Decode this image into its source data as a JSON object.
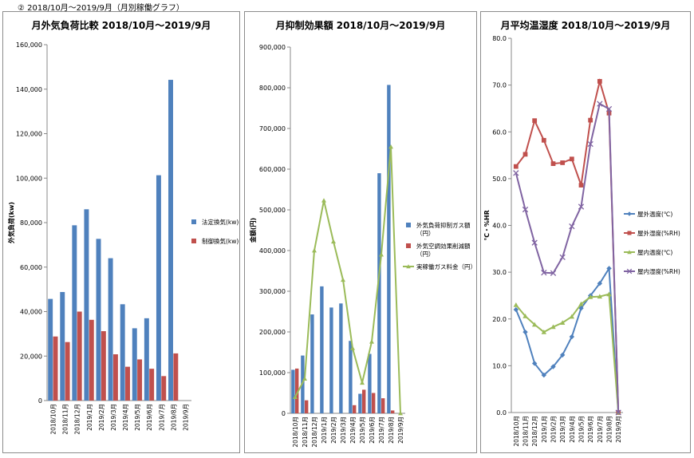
{
  "heading": "② 2018/10月～2019/9月（月別稼働グラフ）",
  "chart_data": [
    {
      "type": "bar",
      "title": "月外気負荷比較 2018/10月～2019/9月",
      "ylabel": "外気負荷(kw)",
      "ylim": [
        0,
        160000
      ],
      "yticks": [
        0,
        20000,
        40000,
        60000,
        80000,
        100000,
        120000,
        140000,
        160000
      ],
      "ytick_labels": [
        "0",
        "20,000",
        "40,000",
        "60,000",
        "80,000",
        "100,000",
        "120,000",
        "140,000",
        "160,000"
      ],
      "categories": [
        "2018/10月",
        "2018/11月",
        "2018/12月",
        "2019/1月",
        "2019/2月",
        "2019/3月",
        "2019/4月",
        "2019/5月",
        "2019/6月",
        "2019/7月",
        "2019/8月",
        "2019/9月"
      ],
      "series": [
        {
          "name": "法定換気(kw)",
          "color": "#4f81bd",
          "values": [
            45700,
            48800,
            78800,
            86000,
            72700,
            64000,
            43300,
            32500,
            37000,
            101300,
            144200,
            0
          ]
        },
        {
          "name": "制御換気(kw)",
          "color": "#c0504d",
          "values": [
            28800,
            26300,
            40000,
            36300,
            31200,
            20800,
            15200,
            18500,
            14300,
            11000,
            21200,
            0
          ]
        }
      ],
      "legend": "right"
    },
    {
      "type": "bar+line",
      "title": "月抑制効果額 2018/10月～2019/9月",
      "ylabel": "金額(円)",
      "ylim": [
        0,
        900000
      ],
      "yticks": [
        0,
        100000,
        200000,
        300000,
        400000,
        500000,
        600000,
        700000,
        800000,
        900000
      ],
      "ytick_labels": [
        "0",
        "100,000",
        "200,000",
        "300,000",
        "400,000",
        "500,000",
        "600,000",
        "700,000",
        "800,000",
        "900,000"
      ],
      "categories": [
        "2018/10月",
        "2018/11月",
        "2018/12月",
        "2019/1月",
        "2019/2月",
        "2019/3月",
        "2019/4月",
        "2019/5月",
        "2019/6月",
        "2019/7月",
        "2019/8月",
        "2019/9月"
      ],
      "series": [
        {
          "name": "外気負荷抑制ガス額\n（円）",
          "kind": "bar",
          "color": "#4f81bd",
          "values": [
            107000,
            142000,
            243000,
            312000,
            260000,
            270000,
            178000,
            48000,
            146000,
            590000,
            807000,
            0
          ]
        },
        {
          "name": "外気空調効果削減額\n（円）",
          "kind": "bar",
          "color": "#c0504d",
          "values": [
            110000,
            32000,
            0,
            0,
            0,
            0,
            20000,
            58000,
            50000,
            37000,
            7000,
            0
          ]
        },
        {
          "name": "実稼働ガス料金（円）",
          "kind": "line",
          "color": "#9bbb59",
          "values": [
            40000,
            85000,
            400000,
            523000,
            422000,
            328000,
            160000,
            75000,
            176000,
            390000,
            655000,
            0
          ]
        }
      ],
      "legend": "right"
    },
    {
      "type": "line",
      "title": "月平均温湿度 2018/10月～2019/9月",
      "ylabel": "℃・%HR",
      "ylim": [
        0,
        80
      ],
      "yticks": [
        0,
        10,
        20,
        30,
        40,
        50,
        60,
        70,
        80
      ],
      "ytick_labels": [
        "0.0",
        "10.0",
        "20.0",
        "30.0",
        "40.0",
        "50.0",
        "60.0",
        "70.0",
        "80.0"
      ],
      "categories": [
        "2018/10月",
        "2018/11月",
        "2018/12月",
        "2019/1月",
        "2019/2月",
        "2019/3月",
        "2019/4月",
        "2019/5月",
        "2019/6月",
        "2019/7月",
        "2019/8月",
        "2019/9月"
      ],
      "series": [
        {
          "name": "屋外温度(℃)",
          "color": "#4f81bd",
          "marker": "diamond",
          "values": [
            22.0,
            17.2,
            10.5,
            8.0,
            9.8,
            12.3,
            16.2,
            22.3,
            25.0,
            27.6,
            30.8,
            0
          ]
        },
        {
          "name": "屋外湿度(%RH)",
          "color": "#c0504d",
          "marker": "square",
          "values": [
            52.6,
            55.2,
            62.4,
            58.2,
            53.2,
            53.4,
            54.2,
            48.6,
            62.5,
            70.8,
            64.0,
            0
          ]
        },
        {
          "name": "屋内温度(℃)",
          "color": "#9bbb59",
          "marker": "triangle",
          "values": [
            23.0,
            20.6,
            18.8,
            17.2,
            18.3,
            19.2,
            20.5,
            23.2,
            24.7,
            24.8,
            25.3,
            0
          ]
        },
        {
          "name": "屋内湿度(%RH)",
          "color": "#8064a2",
          "marker": "x",
          "values": [
            51.2,
            43.4,
            36.3,
            29.9,
            29.8,
            33.2,
            39.8,
            44.0,
            57.4,
            66.0,
            64.9,
            0
          ]
        }
      ],
      "legend": "right"
    }
  ]
}
